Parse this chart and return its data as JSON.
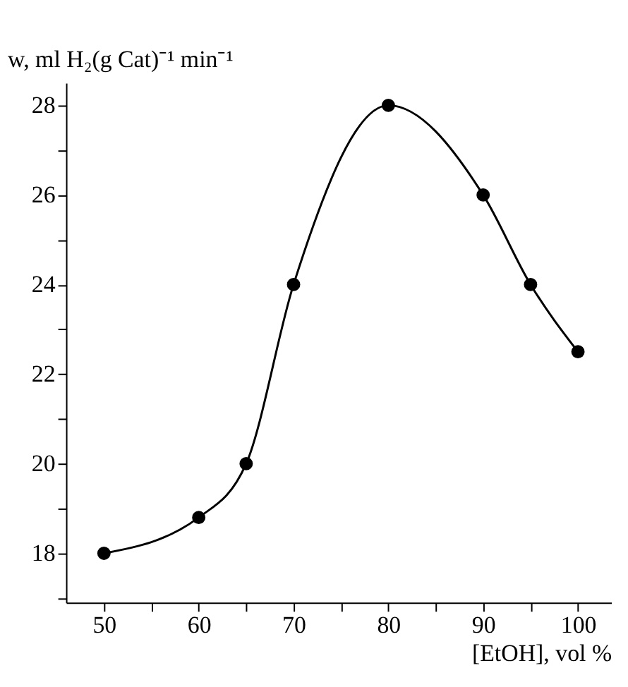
{
  "chart_data": {
    "type": "line",
    "xlabel": "[EtOH], vol %",
    "ylabel": "w, ml H₂(g Cat)⁻¹ min⁻¹",
    "x": [
      50,
      60,
      65,
      70,
      80,
      90,
      95,
      100
    ],
    "series": [
      {
        "color": "#000000",
        "values": [
          18,
          18.8,
          20,
          24,
          28,
          26,
          24,
          22.5
        ]
      }
    ],
    "xlim": [
      46,
      103.5
    ],
    "xticks": [
      50,
      {
        "value": 55,
        "label": null
      },
      60,
      {
        "value": 65,
        "label": null
      },
      70,
      {
        "value": 75,
        "label": null
      },
      80,
      {
        "value": 85,
        "label": null
      },
      90,
      {
        "value": 95,
        "label": null
      },
      100
    ],
    "ylim": [
      16.9,
      28.5
    ],
    "yticks": [
      {
        "value": 17,
        "label": null
      },
      18,
      {
        "value": 19,
        "label": null
      },
      20,
      {
        "value": 21,
        "label": null
      },
      22,
      {
        "value": 23,
        "label": null
      },
      24,
      {
        "value": 25,
        "label": null
      },
      26,
      {
        "value": 27,
        "label": null
      },
      28
    ],
    "marker": "circle",
    "line_style": "solid",
    "grid": false
  }
}
